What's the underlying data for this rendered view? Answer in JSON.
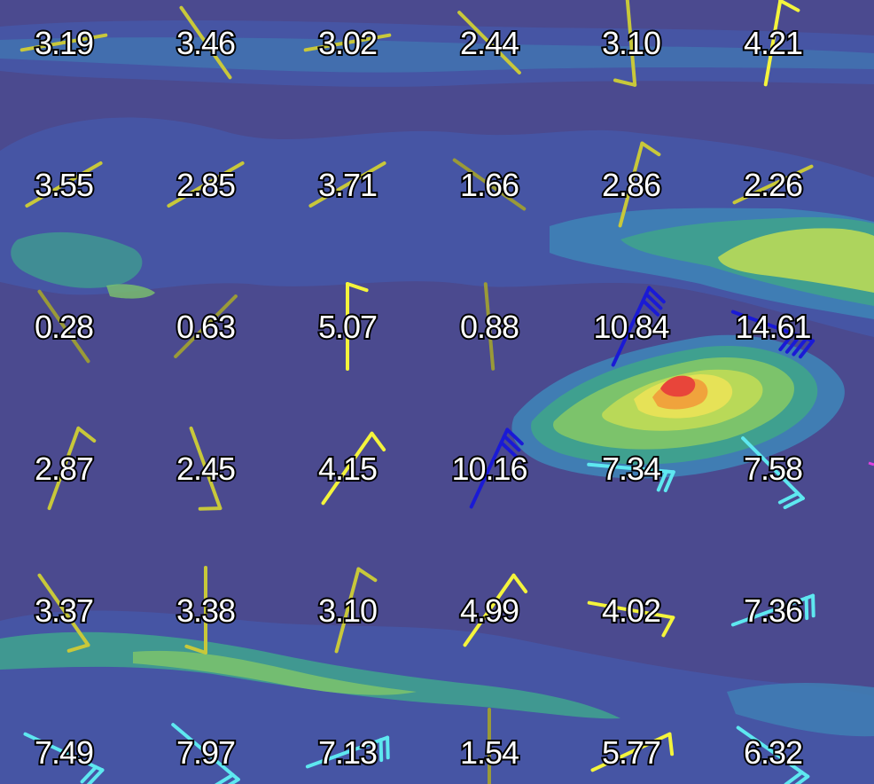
{
  "legend_colors": {
    "background": "#4b4a8f",
    "level1": "#4657a6",
    "level2": "#3f7fb5",
    "level3": "#3fa08f",
    "level4": "#7cc36b",
    "level5": "#b9d958",
    "level6": "#e6e257",
    "level7": "#f0a33c",
    "level8": "#e8453a"
  },
  "barb_colors": {
    "olive": "#9a9a38",
    "yellow_green": "#c8c83a",
    "yellow": "#f4f43c",
    "cyan": "#5ee8f0",
    "blue": "#1a1ad6",
    "magenta": "#e040e0"
  },
  "grid": [
    [
      {
        "value": "3.19",
        "dir": 80,
        "color": "yellow_green",
        "barbs": 0
      },
      {
        "value": "3.46",
        "dir": 145,
        "color": "yellow_green",
        "barbs": 0
      },
      {
        "value": "3.02",
        "dir": 80,
        "color": "yellow_green",
        "barbs": 0
      },
      {
        "value": "2.44",
        "dir": 135,
        "color": "yellow_green",
        "barbs": 0
      },
      {
        "value": "3.10",
        "dir": 175,
        "color": "yellow_green",
        "barbs": 1
      },
      {
        "value": "4.21",
        "dir": 10,
        "color": "yellow",
        "barbs": 1
      }
    ],
    [
      {
        "value": "3.55",
        "dir": 60,
        "color": "yellow_green",
        "barbs": 0
      },
      {
        "value": "2.85",
        "dir": 60,
        "color": "yellow_green",
        "barbs": 0
      },
      {
        "value": "3.71",
        "dir": 60,
        "color": "yellow_green",
        "barbs": 0
      },
      {
        "value": "1.66",
        "dir": 125,
        "color": "olive",
        "barbs": 0
      },
      {
        "value": "2.86",
        "dir": 15,
        "color": "yellow_green",
        "barbs": 1
      },
      {
        "value": "2.26",
        "dir": 65,
        "color": "yellow_green",
        "barbs": 0
      }
    ],
    [
      {
        "value": "0.28",
        "dir": 145,
        "color": "olive",
        "barbs": 0
      },
      {
        "value": "0.63",
        "dir": 45,
        "color": "olive",
        "barbs": 0
      },
      {
        "value": "5.07",
        "dir": 0,
        "color": "yellow",
        "barbs": 1
      },
      {
        "value": "0.88",
        "dir": 175,
        "color": "olive",
        "barbs": 0
      },
      {
        "value": "10.84",
        "dir": 25,
        "color": "blue",
        "barbs": 3
      },
      {
        "value": "14.61",
        "dir": 110,
        "color": "blue",
        "barbs": 4
      }
    ],
    [
      {
        "value": "2.87",
        "dir": 20,
        "color": "yellow_green",
        "barbs": 1
      },
      {
        "value": "2.45",
        "dir": 160,
        "color": "yellow_green",
        "barbs": 1
      },
      {
        "value": "4.15",
        "dir": 35,
        "color": "yellow",
        "barbs": 1
      },
      {
        "value": "10.16",
        "dir": 25,
        "color": "blue",
        "barbs": 3
      },
      {
        "value": "7.34",
        "dir": 95,
        "color": "cyan",
        "barbs": 2
      },
      {
        "value": "7.58",
        "dir": 135,
        "color": "cyan",
        "barbs": 2
      }
    ],
    [
      {
        "value": "3.37",
        "dir": 145,
        "color": "yellow_green",
        "barbs": 1
      },
      {
        "value": "3.38",
        "dir": 180,
        "color": "yellow_green",
        "barbs": 1
      },
      {
        "value": "3.10",
        "dir": 15,
        "color": "yellow_green",
        "barbs": 1
      },
      {
        "value": "4.99",
        "dir": 35,
        "color": "yellow",
        "barbs": 1
      },
      {
        "value": "4.02",
        "dir": 100,
        "color": "yellow",
        "barbs": 1
      },
      {
        "value": "7.36",
        "dir": 70,
        "color": "cyan",
        "barbs": 2
      }
    ],
    [
      {
        "value": "7.49",
        "dir": 115,
        "color": "cyan",
        "barbs": 2
      },
      {
        "value": "7.97",
        "dir": 130,
        "color": "cyan",
        "barbs": 2
      },
      {
        "value": "7.13",
        "dir": 70,
        "color": "cyan",
        "barbs": 2
      },
      {
        "value": "1.54",
        "dir": 180,
        "color": "olive",
        "barbs": 0
      },
      {
        "value": "5.77",
        "dir": 65,
        "color": "yellow",
        "barbs": 1
      },
      {
        "value": "6.32",
        "dir": 125,
        "color": "cyan",
        "barbs": 2
      }
    ]
  ]
}
